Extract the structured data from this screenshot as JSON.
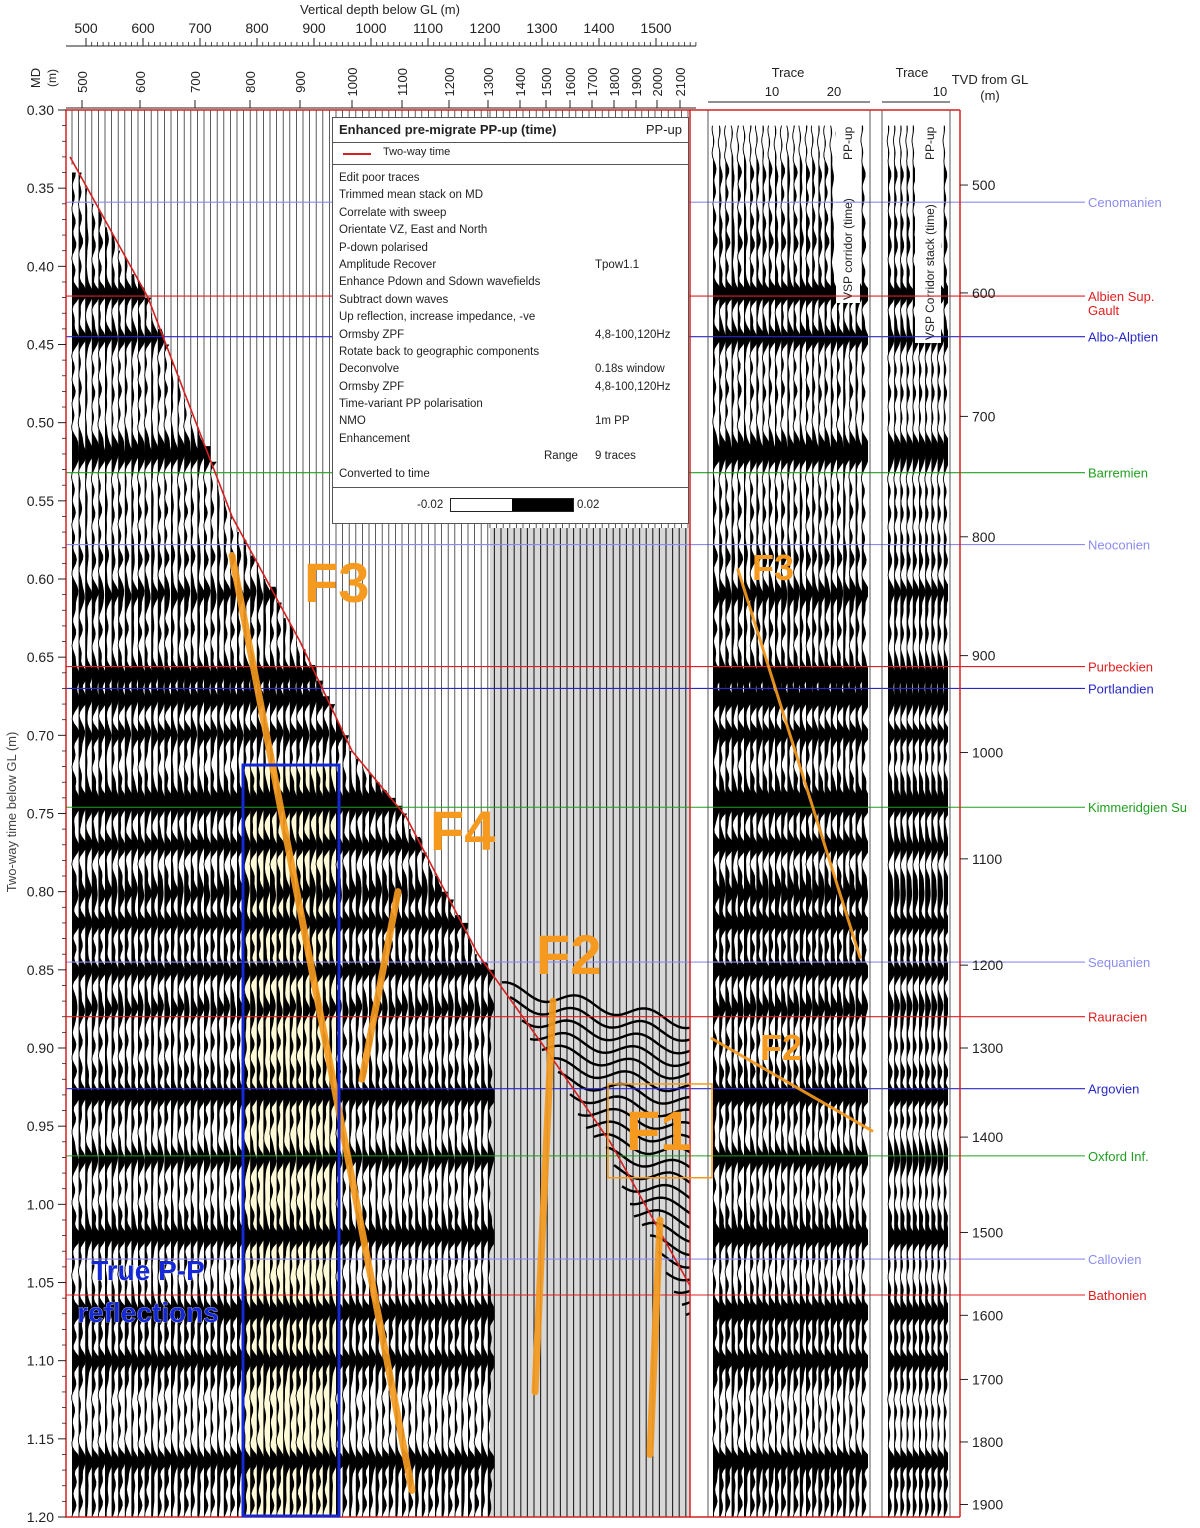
{
  "chart_data": {
    "type": "seismic-vsp-section",
    "top_axis_title": "Vertical depth below GL (m)",
    "top_axis_ticks": [
      "500",
      "600",
      "700",
      "800",
      "900",
      "1000",
      "1100",
      "1200",
      "1300",
      "1400",
      "1500"
    ],
    "md_axis_label": "MD\n(m)",
    "md_ticks": [
      "500",
      "600",
      "700",
      "800",
      "900",
      "1000",
      "1100",
      "1200",
      "1300",
      "1400",
      "1500",
      "1600",
      "1700",
      "1800",
      "1900",
      "2000",
      "2100"
    ],
    "left_axis_title": "Two-way time below GL (m)",
    "left_axis_ticks": [
      "0.30",
      "0.35",
      "0.40",
      "0.45",
      "0.50",
      "0.55",
      "0.60",
      "0.65",
      "0.70",
      "0.75",
      "0.80",
      "0.85",
      "0.90",
      "0.95",
      "1.00",
      "1.05",
      "1.10",
      "1.15",
      "1.20"
    ],
    "y_range": [
      0.3,
      1.2
    ],
    "trace_panel_1_header": "Trace",
    "trace_panel_1_ticks": [
      "10",
      "20"
    ],
    "trace_panel_1_label": "VSP corridor (time)",
    "trace_panel_1_tag": "PP-up",
    "trace_panel_2_header": "Trace",
    "trace_panel_2_ticks": [
      "10"
    ],
    "trace_panel_2_label": "VSP Corridor stack (time)",
    "trace_panel_2_tag": "PP-up",
    "right_axis_title": "TVD from GL\n(m)",
    "right_axis_ticks": [
      {
        "label": "500",
        "t": 0.348
      },
      {
        "label": "600",
        "t": 0.417
      },
      {
        "label": "700",
        "t": 0.496
      },
      {
        "label": "800",
        "t": 0.573
      },
      {
        "label": "900",
        "t": 0.649
      },
      {
        "label": "1000",
        "t": 0.711
      },
      {
        "label": "1100",
        "t": 0.779
      },
      {
        "label": "1200",
        "t": 0.847
      },
      {
        "label": "1300",
        "t": 0.9
      },
      {
        "label": "1400",
        "t": 0.957
      },
      {
        "label": "1500",
        "t": 1.018
      },
      {
        "label": "1600",
        "t": 1.071
      },
      {
        "label": "1700",
        "t": 1.112
      },
      {
        "label": "1800",
        "t": 1.152
      },
      {
        "label": "1900",
        "t": 1.192
      }
    ],
    "horizons": [
      {
        "name": "Cenomanien",
        "t": 0.359,
        "color": "#8c8cf0"
      },
      {
        "name": "Albien Sup.\nGault",
        "t": 0.419,
        "color": "#e02020"
      },
      {
        "name": "Albo-Alptien",
        "t": 0.445,
        "color": "#2828c8"
      },
      {
        "name": "Barremien",
        "t": 0.532,
        "color": "#20a020"
      },
      {
        "name": "Neoconien",
        "t": 0.578,
        "color": "#8c8cf0"
      },
      {
        "name": "Purbeckien",
        "t": 0.656,
        "color": "#e02020"
      },
      {
        "name": "Portlandien",
        "t": 0.67,
        "color": "#2828c8"
      },
      {
        "name": "Kimmeridgien Su",
        "t": 0.746,
        "color": "#20a020"
      },
      {
        "name": "Sequanien",
        "t": 0.845,
        "color": "#8c8cf0"
      },
      {
        "name": "Rauracien",
        "t": 0.88,
        "color": "#e02020"
      },
      {
        "name": "Argovien",
        "t": 0.926,
        "color": "#2828c8"
      },
      {
        "name": "Oxford Inf.",
        "t": 0.969,
        "color": "#20a020"
      },
      {
        "name": "Callovien",
        "t": 1.035,
        "color": "#8c8cf0"
      },
      {
        "name": "Bathonien",
        "t": 1.058,
        "color": "#e02020"
      }
    ],
    "fault_labels": {
      "f3": "F3",
      "f4": "F4",
      "f2": "F2",
      "f1": "F1",
      "f3b": "F3",
      "f2b": "F2"
    },
    "annotation": "True P-P\nreflections",
    "legend": {
      "title": "Enhanced pre-migrate PP-up (time)",
      "tag": "PP-up",
      "line_key": "Two-way time",
      "steps": [
        {
          "text": "Edit poor traces",
          "value": ""
        },
        {
          "text": "Trimmed mean stack on MD",
          "value": ""
        },
        {
          "text": "Correlate with sweep",
          "value": ""
        },
        {
          "text": "Orientate VZ, East and North",
          "value": ""
        },
        {
          "text": "P-down polarised",
          "value": ""
        },
        {
          "text": "Amplitude Recover",
          "value": "Tpow1.1"
        },
        {
          "text": "Enhance Pdown and Sdown wavefields",
          "value": ""
        },
        {
          "text": "Subtract down waves",
          "value": ""
        },
        {
          "text": "Up reflection, increase impedance, -ve",
          "value": ""
        },
        {
          "text": "Ormsby ZPF",
          "value": "4,8-100,120Hz"
        },
        {
          "text": "Rotate back to geographic components",
          "value": ""
        },
        {
          "text": "Deconvolve",
          "value": "0.18s window"
        },
        {
          "text": "Ormsby ZPF",
          "value": "4,8-100,120Hz"
        },
        {
          "text": "Time-variant PP polarisation",
          "value": ""
        },
        {
          "text": "NMO",
          "value": "1m PP"
        },
        {
          "text": "Enhancement",
          "value": ""
        },
        {
          "text": "Range",
          "value": "9  traces"
        },
        {
          "text": "Converted to time",
          "value": ""
        }
      ],
      "scale_min": "-0.02",
      "scale_max": "0.02"
    },
    "colors": {
      "frame": "#d62020",
      "fault": "#f59a1e",
      "box": "#1428d8",
      "highlight": "#fffbd8"
    }
  }
}
